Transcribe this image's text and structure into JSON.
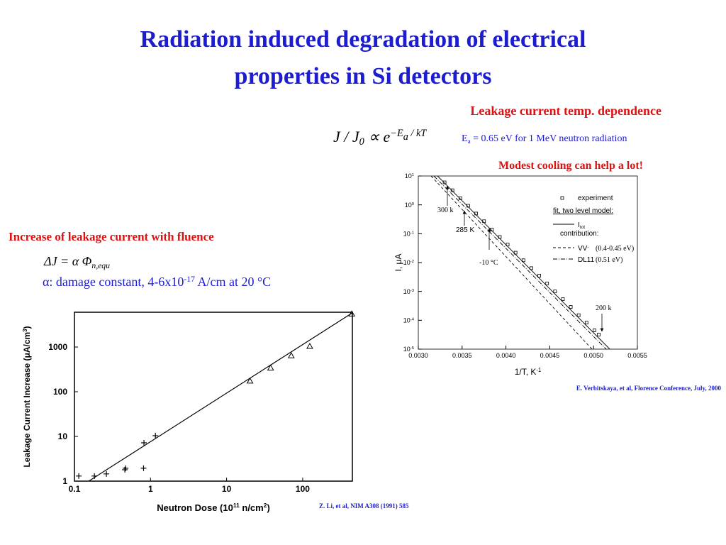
{
  "title_lines": [
    "Radiation induced degradation of electrical",
    "properties in Si detectors"
  ],
  "right_heading": "Leakage current temp. dependence",
  "right_formula": [
    {
      "t": "J / J"
    },
    {
      "t": "0",
      "s": "sub"
    },
    {
      "t": " ∝ e"
    },
    {
      "t": "−E",
      "s": "sup"
    },
    {
      "t": "a",
      "s": "supsub"
    },
    {
      "t": " / kT",
      "s": "sup"
    }
  ],
  "ea_note": [
    {
      "t": "E"
    },
    {
      "t": "a",
      "s": "sub"
    },
    {
      "t": " = 0.65 eV for 1 MeV neutron radiation"
    }
  ],
  "cooling_note": "Modest cooling can help a lot!",
  "left_heading": "Increase of leakage current with fluence",
  "left_formula": [
    {
      "t": "ΔJ = α  Φ"
    },
    {
      "t": "n,equ",
      "s": "sub"
    }
  ],
  "alpha_note": [
    {
      "t": "α: damage constant, 4-6x10"
    },
    {
      "t": "-17",
      "s": "sup"
    },
    {
      "t": " A/cm at 20 °C"
    }
  ],
  "left_citation": "Z. Li, et al, NIM A308 (1991) 585",
  "right_citation": "E. Verbitskaya, et al, Florence Conference, July, 2000",
  "chart_data": [
    {
      "type": "scatter",
      "xlabel": [
        {
          "t": "Neutron  Dose  (10"
        },
        {
          "t": "11",
          "s": "sup"
        },
        {
          "t": " n/cm"
        },
        {
          "t": "2",
          "s": "sup"
        },
        {
          "t": ")"
        }
      ],
      "ylabel": [
        {
          "t": "Leakage  Current  Increase  (μA/cm"
        },
        {
          "t": "3",
          "s": "sup"
        },
        {
          "t": ")"
        }
      ],
      "xscale": "log",
      "yscale": "log",
      "xlim": [
        0.1,
        450
      ],
      "ylim": [
        1,
        6000
      ],
      "xticks": [
        0.1,
        1,
        10,
        100
      ],
      "yticks": [
        1,
        10,
        100,
        1000
      ],
      "series": [
        {
          "mode": "markers",
          "marker": "plus",
          "color": "#000000",
          "x": [
            0.114,
            0.183,
            0.263,
            0.46,
            0.47,
            0.81,
            0.82,
            1.16
          ],
          "values": [
            1.3,
            1.3,
            1.45,
            1.8,
            1.95,
            1.95,
            7.2,
            10.4
          ]
        },
        {
          "mode": "markers",
          "marker": "triangle",
          "color": "#000000",
          "x": [
            20.3,
            37.9,
            70.8,
            124,
            442
          ],
          "values": [
            174,
            340,
            640,
            1040,
            5500
          ]
        },
        {
          "mode": "line",
          "dash": "solid",
          "color": "#000000",
          "x": [
            0.154,
            450
          ],
          "values": [
            1,
            5800
          ]
        }
      ]
    },
    {
      "type": "scatter",
      "xlabel": [
        {
          "t": "1/T, K"
        },
        {
          "t": "-1",
          "s": "sup"
        }
      ],
      "ylabel": [
        {
          "t": "I, μA"
        }
      ],
      "xscale": "linear",
      "yscale": "log",
      "xlim": [
        0.003,
        0.0055
      ],
      "ylim": [
        1e-05,
        10
      ],
      "xticks": [
        {
          "value": 0.003,
          "label": "0.0030"
        },
        {
          "value": 0.0035,
          "label": "0.0035"
        },
        {
          "value": 0.004,
          "label": "0.0040"
        },
        {
          "value": 0.0045,
          "label": "0.0045"
        },
        {
          "value": 0.005,
          "label": "0.0050"
        },
        {
          "value": 0.0055,
          "label": "0.0055"
        }
      ],
      "yticks": [
        {
          "value": 10,
          "label": "10",
          "exp": "1"
        },
        {
          "value": 1,
          "label": "10",
          "exp": "0"
        },
        {
          "value": 0.1,
          "label": "10",
          "exp": "-1"
        },
        {
          "value": 0.01,
          "label": "10",
          "exp": "-2"
        },
        {
          "value": 0.001,
          "label": "10",
          "exp": "-3"
        },
        {
          "value": 0.0001,
          "label": "10",
          "exp": "-4"
        },
        {
          "value": 1e-05,
          "label": "10",
          "exp": "-5"
        }
      ],
      "legend_heading": "fit, two level model:",
      "legend_subheading": "contribution:",
      "annotations": [
        "300 k",
        "285 K",
        "-10 °C",
        "200 k"
      ],
      "series": [
        {
          "name": "experiment",
          "mode": "markers",
          "marker": "square",
          "color": "#000000",
          "x": [
            0.0033,
            0.00339,
            0.00348,
            0.00357,
            0.00366,
            0.00375,
            0.00384,
            0.00393,
            0.00402,
            0.00411,
            0.0042,
            0.00429,
            0.00438,
            0.00447,
            0.00456,
            0.00465,
            0.00474,
            0.00483,
            0.00492,
            0.00501,
            0.00506
          ],
          "values": [
            6.0,
            3.2,
            1.7,
            0.93,
            0.5,
            0.27,
            0.14,
            0.077,
            0.042,
            0.022,
            0.012,
            0.0064,
            0.0035,
            0.0019,
            0.001,
            0.00054,
            0.00029,
            0.00015,
            8.3e-05,
            4.5e-05,
            3.2e-05
          ]
        },
        {
          "name": "I",
          "name_sub": "tot",
          "mode": "line",
          "dash": "solid",
          "color": "#000000",
          "x": [
            0.003219,
            0.005185
          ],
          "values": [
            10,
            1e-05
          ]
        },
        {
          "name": "VV",
          "name_sup": "-",
          "note": "(0.4-0.45 eV)",
          "mode": "line",
          "dash": "dashed",
          "color": "#000000",
          "x": [
            0.003146,
            0.004982
          ],
          "values": [
            10,
            1e-05
          ]
        },
        {
          "name": "DL11",
          "note": "(0.51 eV)",
          "mode": "line",
          "dash": "dashdot",
          "color": "#000000",
          "x": [
            0.003178,
            0.005144
          ],
          "values": [
            10,
            1e-05
          ]
        }
      ]
    }
  ]
}
